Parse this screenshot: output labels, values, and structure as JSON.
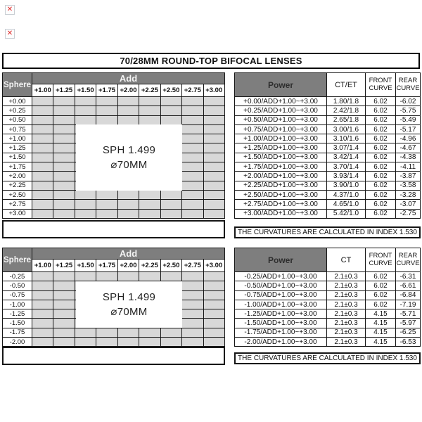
{
  "title": "70/28MM ROUND-TOP BIFOCAL LENSES",
  "labels": {
    "sphere": "Sphere",
    "add": "Add",
    "add_values": [
      "+1.00",
      "+1.25",
      "+1.50",
      "+1.75",
      "+2.00",
      "+2.25",
      "+2.50",
      "+2.75",
      "+3.00"
    ]
  },
  "lens_label": {
    "line1": "SPH 1.499",
    "line2": "⌀70MM"
  },
  "note": "THE CURVATURES ARE CALCULATED IN INDEX 1.530",
  "icons": {
    "broken_image": "✕"
  },
  "colors": {
    "header_bg": "#7e7e7e",
    "cell_bg": "#d8d8d8",
    "border": "#151515",
    "broken_x": "#dd2222"
  },
  "table1": {
    "headers": {
      "power": "Power",
      "ct": "CT/ET",
      "front": "FRONT CURVE",
      "rear": "REAR CURVE"
    },
    "spheres": [
      "+0.00",
      "+0.25",
      "+0.50",
      "+0.75",
      "+1.00",
      "+1.25",
      "+1.50",
      "+1.75",
      "+2.00",
      "+2.25",
      "+2.50",
      "+2.75",
      "+3.00"
    ],
    "rows": [
      {
        "power": "+0.00/ADD+1.00~+3.00",
        "ct": "1.80/1.8",
        "front": "6.02",
        "rear": "-6.02"
      },
      {
        "power": "+0.25/ADD+1.00~+3.00",
        "ct": "2.42/1.8",
        "front": "6.02",
        "rear": "-5.75"
      },
      {
        "power": "+0.50/ADD+1.00~+3.00",
        "ct": "2.65/1.8",
        "front": "6.02",
        "rear": "-5.49"
      },
      {
        "power": "+0.75/ADD+1.00~+3.00",
        "ct": "3.00/1.6",
        "front": "6.02",
        "rear": "-5.17"
      },
      {
        "power": "+1.00/ADD+1.00~+3.00",
        "ct": "3.10/1.6",
        "front": "6.02",
        "rear": "-4.96"
      },
      {
        "power": "+1.25/ADD+1.00~+3.00",
        "ct": "3.07/1.4",
        "front": "6.02",
        "rear": "-4.67"
      },
      {
        "power": "+1.50/ADD+1.00~+3.00",
        "ct": "3.42/1.4",
        "front": "6.02",
        "rear": "-4.38"
      },
      {
        "power": "+1.75/ADD+1.00~+3.00",
        "ct": "3.70/1.4",
        "front": "6.02",
        "rear": "-4.11"
      },
      {
        "power": "+2.00/ADD+1.00~+3.00",
        "ct": "3.93/1.4",
        "front": "6.02",
        "rear": "-3.87"
      },
      {
        "power": "+2.25/ADD+1.00~+3.00",
        "ct": "3.90/1.0",
        "front": "6.02",
        "rear": "-3.58"
      },
      {
        "power": "+2.50/ADD+1.00~+3.00",
        "ct": "4.37/1.0",
        "front": "6.02",
        "rear": "-3.28"
      },
      {
        "power": "+2.75/ADD+1.00~+3.00",
        "ct": "4.65/1.0",
        "front": "6.02",
        "rear": "-3.07"
      },
      {
        "power": "+3.00/ADD+1.00~+3.00",
        "ct": "5.42/1.0",
        "front": "6.02",
        "rear": "-2.75"
      }
    ]
  },
  "table2": {
    "headers": {
      "power": "Power",
      "ct": "CT",
      "front": "FRONT CURVE",
      "rear": "REAR CURVE"
    },
    "spheres": [
      "-0.25",
      "-0.50",
      "-0.75",
      "-1.00",
      "-1.25",
      "-1.50",
      "-1.75",
      "-2.00"
    ],
    "rows": [
      {
        "power": "-0.25/ADD+1.00~+3.00",
        "ct": "2.1±0.3",
        "front": "6.02",
        "rear": "-6.31"
      },
      {
        "power": "-0.50/ADD+1.00~+3.00",
        "ct": "2.1±0.3",
        "front": "6.02",
        "rear": "-6.61"
      },
      {
        "power": "-0.75/ADD+1.00~+3.00",
        "ct": "2.1±0.3",
        "front": "6.02",
        "rear": "-6.84"
      },
      {
        "power": "-1.00/ADD+1.00~+3.00",
        "ct": "2.1±0.3",
        "front": "6.02",
        "rear": "-7.19"
      },
      {
        "power": "-1.25/ADD+1.00~+3.00",
        "ct": "2.1±0.3",
        "front": "4.15",
        "rear": "-5.71"
      },
      {
        "power": "-1.50/ADD+1.00~+3.00",
        "ct": "2.1±0.3",
        "front": "4.15",
        "rear": "-5.97"
      },
      {
        "power": "-1.75/ADD+1.00~+3.00",
        "ct": "2.1±0.3",
        "front": "4.15",
        "rear": "-6.25"
      },
      {
        "power": "-2.00/ADD+1.00~+3.00",
        "ct": "2.1±0.3",
        "front": "4.15",
        "rear": "-6.53"
      }
    ]
  }
}
